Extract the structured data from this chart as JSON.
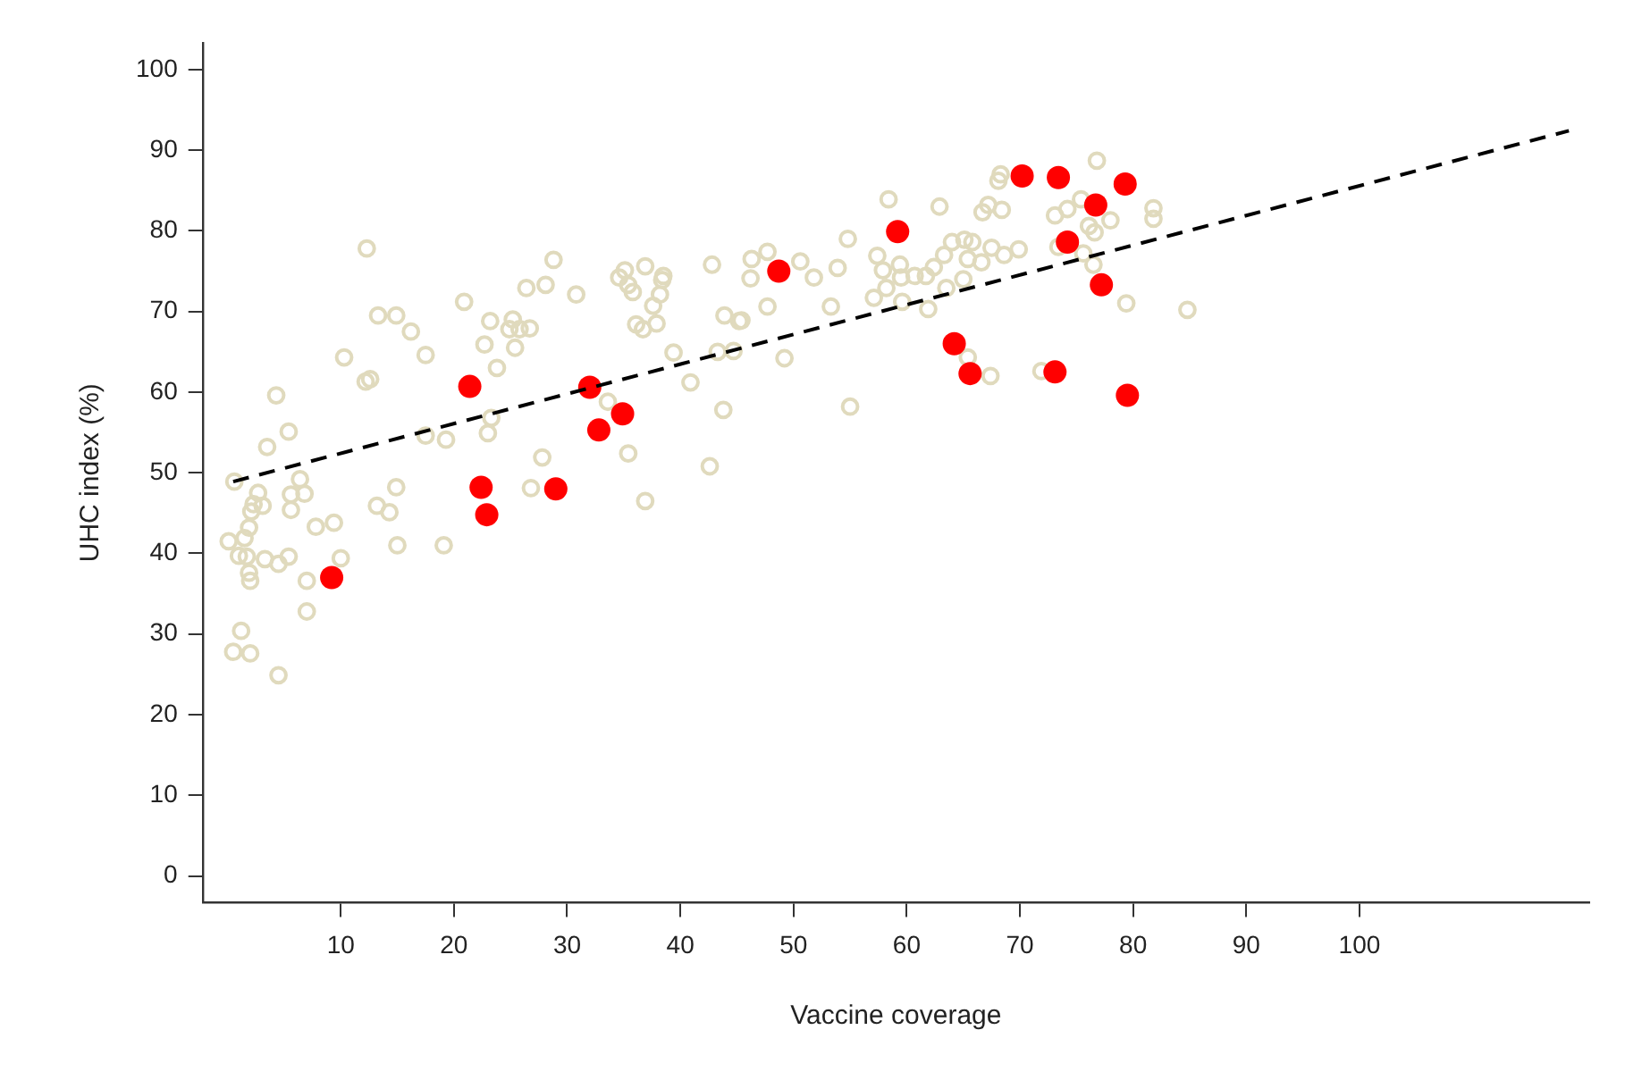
{
  "chart_data": {
    "type": "scatter",
    "xlabel": "Vaccine coverage",
    "ylabel": "UHC index (%)",
    "xlim": [
      -2.2,
      120.3
    ],
    "xticks": [
      10,
      20,
      30,
      40,
      50,
      60,
      70,
      80,
      90,
      100
    ],
    "ylim": [
      -3.3,
      103.3
    ],
    "yticks": [
      0,
      10,
      20,
      30,
      40,
      50,
      60,
      70,
      80,
      90,
      100
    ],
    "grid": false,
    "legend": false,
    "marker": "circle",
    "series": [
      {
        "color": "#e0dabd",
        "x": [
          0.1,
          0.6,
          0.5,
          1.2,
          2.0,
          1.0,
          1.5,
          1.9,
          2.1,
          2.3,
          2.7,
          3.1,
          1.7,
          1.9,
          2.0,
          3.3,
          3.5,
          4.3,
          4.5,
          4.5,
          5.4,
          5.6,
          5.6,
          5.4,
          6.4,
          6.8,
          7.0,
          7.0,
          7.8,
          9.4,
          10.0,
          10.3,
          12.3,
          12.2,
          12.6,
          13.3,
          13.2,
          14.3,
          14.9,
          14.9,
          15.0,
          16.2,
          17.5,
          17.5,
          19.3,
          19.1,
          20.9,
          22.7,
          23.0,
          23.3,
          23.2,
          23.8,
          24.9,
          25.2,
          25.4,
          25.8,
          26.7,
          26.4,
          26.8,
          27.8,
          28.1,
          28.8,
          30.8,
          33.6,
          34.6,
          35.1,
          35.4,
          35.8,
          35.4,
          36.1,
          36.7,
          36.9,
          36.9,
          37.6,
          37.9,
          38.2,
          38.4,
          38.5,
          39.4,
          40.9,
          42.6,
          42.8,
          43.3,
          43.9,
          43.8,
          44.7,
          45.2,
          45.4,
          46.2,
          46.3,
          47.7,
          47.7,
          49.2,
          50.6,
          51.8,
          53.3,
          53.9,
          54.8,
          55.0,
          57.1,
          57.4,
          57.9,
          58.2,
          58.4,
          59.4,
          59.5,
          59.6,
          60.7,
          61.7,
          61.9,
          62.4,
          62.9,
          63.3,
          63.5,
          64.0,
          65.0,
          65.1,
          65.4,
          65.8,
          65.4,
          66.6,
          66.7,
          67.2,
          67.4,
          67.5,
          68.3,
          68.1,
          68.4,
          68.6,
          69.9,
          71.9,
          73.1,
          73.4,
          74.2,
          75.4,
          75.6,
          76.1,
          76.6,
          76.5,
          76.8,
          78.0,
          79.4,
          81.8,
          81.8,
          84.8
        ],
        "values": [
          41.5,
          48.9,
          27.8,
          30.4,
          27.6,
          39.7,
          41.9,
          43.2,
          45.2,
          46.1,
          47.5,
          45.9,
          39.6,
          37.6,
          36.6,
          39.3,
          53.2,
          59.6,
          38.7,
          24.9,
          55.1,
          47.3,
          45.4,
          39.6,
          49.2,
          47.4,
          36.6,
          32.8,
          43.3,
          43.8,
          39.4,
          64.3,
          77.8,
          61.3,
          61.6,
          69.5,
          45.9,
          45.1,
          69.5,
          48.2,
          41.0,
          67.5,
          64.6,
          54.6,
          54.1,
          41.0,
          71.2,
          65.9,
          54.9,
          56.8,
          68.8,
          63.0,
          67.8,
          69.0,
          65.5,
          67.8,
          67.9,
          72.9,
          48.1,
          51.9,
          73.3,
          76.4,
          72.1,
          58.8,
          74.2,
          75.1,
          73.3,
          72.4,
          52.4,
          68.4,
          67.8,
          75.6,
          46.5,
          70.7,
          68.5,
          72.1,
          73.9,
          74.4,
          64.9,
          61.2,
          50.8,
          75.8,
          65.0,
          69.5,
          57.8,
          65.1,
          68.8,
          68.9,
          74.1,
          76.5,
          70.6,
          77.4,
          64.2,
          76.2,
          74.2,
          70.6,
          75.4,
          79.0,
          58.2,
          71.7,
          76.9,
          75.1,
          72.9,
          83.9,
          75.8,
          74.2,
          71.2,
          74.4,
          74.4,
          70.3,
          75.5,
          83.0,
          77.0,
          72.9,
          78.6,
          74.0,
          78.9,
          76.5,
          78.6,
          64.3,
          76.1,
          82.3,
          83.2,
          62.0,
          77.9,
          87.0,
          86.2,
          82.6,
          77.0,
          77.7,
          62.6,
          81.9,
          78.0,
          82.7,
          83.9,
          77.2,
          80.6,
          79.8,
          75.8,
          88.7,
          81.3,
          71.0,
          82.8,
          81.5,
          70.2
        ]
      },
      {
        "color": "#ff0000",
        "x": [
          9.2,
          21.4,
          22.4,
          22.9,
          29.0,
          32.0,
          32.8,
          34.9,
          48.7,
          59.2,
          64.2,
          65.6,
          70.2,
          73.4,
          73.1,
          74.2,
          76.7,
          77.2,
          79.3,
          79.5
        ],
        "values": [
          37.0,
          60.7,
          48.2,
          44.8,
          48.0,
          60.6,
          55.3,
          57.3,
          75.0,
          79.9,
          66.0,
          62.3,
          86.8,
          86.6,
          62.5,
          78.6,
          83.2,
          73.3,
          85.8,
          59.6
        ]
      },
      {
        "type": "line",
        "color": "#000000",
        "line_style": "dashed",
        "marker": "none",
        "x": [
          0.5,
          118.5
        ],
        "values": [
          48.9,
          92.4
        ]
      }
    ]
  }
}
